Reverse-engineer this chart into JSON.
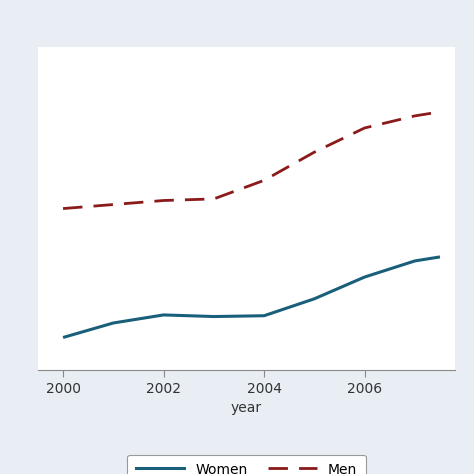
{
  "years": [
    2000,
    2001,
    2002,
    2003,
    2004,
    2005,
    2006,
    2007,
    2007.5
  ],
  "women": [
    4000,
    5800,
    6800,
    6600,
    6700,
    8800,
    11500,
    13500,
    14000
  ],
  "men": [
    20000,
    20500,
    21000,
    21200,
    23500,
    27000,
    30000,
    31500,
    32000
  ],
  "women_color": "#1a5f7a",
  "men_color": "#8b1a1a",
  "xlabel": "year",
  "xticks": [
    2002,
    2004,
    2006
  ],
  "xlim": [
    1999.5,
    2007.8
  ],
  "ylim": [
    0,
    40000
  ],
  "background_color": "#e8eef4",
  "header_color": "#dde5ed",
  "plot_bg": "#ffffff",
  "grid_color": "#cccccc",
  "legend_box_color": "#ffffff",
  "legend_edge_color": "#999999"
}
